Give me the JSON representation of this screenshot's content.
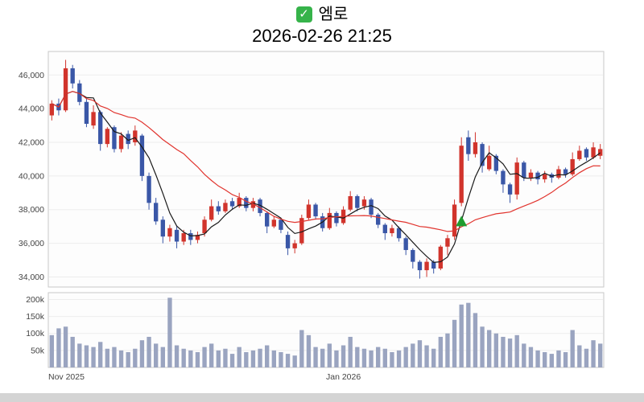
{
  "header": {
    "check_icon": "✓",
    "title": "엠로",
    "datetime": "2026-02-26 21:25"
  },
  "colors": {
    "up": "#d1342c",
    "down": "#3a57a7",
    "volume": "#9aa4c0",
    "panel_bg": "#fdfdfd",
    "panel_border": "#c8c8c8",
    "grid": "#ededed",
    "marker": "#1f9d2f",
    "check_bg": "#36b34a"
  },
  "chart_data": {
    "type": "candlestick",
    "title": "엠로",
    "datetime": "2026-02-26 21:25",
    "price_axis": {
      "min": 33400,
      "max": 47400,
      "ticks": [
        46000,
        44000,
        42000,
        40000,
        38000,
        36000,
        34000
      ]
    },
    "volume_axis": {
      "max": 220,
      "unit": "k",
      "ticks": [
        {
          "value": 200,
          "label": "200k"
        },
        {
          "value": 150,
          "label": "150k"
        },
        {
          "value": 100,
          "label": "100k"
        },
        {
          "value": 50,
          "label": "50k"
        }
      ]
    },
    "x_labels": [
      {
        "index": 0,
        "label": "Nov 2025"
      },
      {
        "index": 40,
        "label": "Jan 2026"
      }
    ],
    "overlays": [
      {
        "name": "ma-short-line",
        "period": 5,
        "color": "#1a1a1a"
      },
      {
        "name": "ma-long-line",
        "period": 20,
        "color": "#e1342e"
      }
    ],
    "marker": {
      "type": "up-triangle",
      "index": 59,
      "price": 37300
    },
    "candles_format": [
      "open",
      "high",
      "low",
      "close",
      "volume_k"
    ],
    "candles": [
      [
        43600,
        44500,
        43300,
        44300,
        95
      ],
      [
        44300,
        44600,
        43600,
        43900,
        115
      ],
      [
        43900,
        46900,
        43800,
        46400,
        120
      ],
      [
        46400,
        46600,
        45200,
        45500,
        90
      ],
      [
        45500,
        45700,
        44200,
        44400,
        70
      ],
      [
        44400,
        44600,
        42900,
        43100,
        65
      ],
      [
        43000,
        44200,
        42800,
        43800,
        60
      ],
      [
        43800,
        43900,
        41500,
        41900,
        75
      ],
      [
        41900,
        42900,
        41700,
        42800,
        55
      ],
      [
        42900,
        43000,
        41400,
        41600,
        60
      ],
      [
        41600,
        42600,
        41400,
        42400,
        50
      ],
      [
        42500,
        42700,
        41600,
        41900,
        45
      ],
      [
        42000,
        43000,
        41800,
        42700,
        55
      ],
      [
        42400,
        42500,
        39700,
        40000,
        80
      ],
      [
        40000,
        40200,
        38000,
        38400,
        90
      ],
      [
        38400,
        38700,
        37100,
        37300,
        70
      ],
      [
        37400,
        37600,
        36000,
        36400,
        60
      ],
      [
        36400,
        37100,
        36100,
        36900,
        205
      ],
      [
        36800,
        37000,
        35700,
        36100,
        65
      ],
      [
        36100,
        36800,
        35900,
        36600,
        55
      ],
      [
        36600,
        36800,
        35900,
        36200,
        50
      ],
      [
        36200,
        36700,
        36000,
        36500,
        45
      ],
      [
        36600,
        37600,
        36400,
        37400,
        60
      ],
      [
        37400,
        38600,
        37300,
        38200,
        70
      ],
      [
        38200,
        38500,
        37700,
        37900,
        50
      ],
      [
        37900,
        38600,
        37800,
        38400,
        55
      ],
      [
        38500,
        38700,
        38000,
        38200,
        40
      ],
      [
        38200,
        39000,
        38100,
        38700,
        60
      ],
      [
        38700,
        38800,
        37900,
        38100,
        45
      ],
      [
        38100,
        38700,
        37900,
        38500,
        50
      ],
      [
        38600,
        38700,
        37600,
        37800,
        55
      ],
      [
        37800,
        37900,
        36600,
        37000,
        65
      ],
      [
        37000,
        37600,
        36900,
        37400,
        50
      ],
      [
        37400,
        37500,
        36600,
        36800,
        45
      ],
      [
        36500,
        36700,
        35300,
        35700,
        40
      ],
      [
        35700,
        36200,
        35400,
        36000,
        35
      ],
      [
        36000,
        37700,
        35900,
        37500,
        110
      ],
      [
        37500,
        38600,
        37400,
        38300,
        95
      ],
      [
        38300,
        38400,
        37400,
        37600,
        60
      ],
      [
        37600,
        37800,
        36700,
        36900,
        55
      ],
      [
        36900,
        38100,
        36800,
        37800,
        70
      ],
      [
        37800,
        37900,
        37000,
        37200,
        50
      ],
      [
        37200,
        38200,
        37100,
        38000,
        65
      ],
      [
        38000,
        39100,
        37900,
        38800,
        90
      ],
      [
        38800,
        38900,
        37900,
        38100,
        60
      ],
      [
        38200,
        38800,
        38000,
        38600,
        55
      ],
      [
        38600,
        38700,
        37500,
        37700,
        50
      ],
      [
        37700,
        37800,
        36900,
        37100,
        60
      ],
      [
        37100,
        37200,
        36200,
        36600,
        55
      ],
      [
        36600,
        37100,
        36400,
        36900,
        45
      ],
      [
        36900,
        37000,
        36100,
        36300,
        50
      ],
      [
        36300,
        36400,
        35300,
        35600,
        60
      ],
      [
        35600,
        35700,
        34500,
        34900,
        70
      ],
      [
        34900,
        35000,
        33900,
        34400,
        80
      ],
      [
        34400,
        35100,
        34000,
        34900,
        65
      ],
      [
        34900,
        35000,
        34200,
        34500,
        55
      ],
      [
        34500,
        35900,
        34400,
        35800,
        90
      ],
      [
        35800,
        36500,
        35300,
        36300,
        100
      ],
      [
        36400,
        38600,
        36200,
        38300,
        140
      ],
      [
        38400,
        42300,
        38200,
        41800,
        185
      ],
      [
        42300,
        42700,
        40900,
        41300,
        190
      ],
      [
        41300,
        42600,
        41100,
        42000,
        160
      ],
      [
        41900,
        42000,
        40200,
        40600,
        120
      ],
      [
        40400,
        41800,
        40300,
        41200,
        110
      ],
      [
        41200,
        41300,
        40100,
        40300,
        100
      ],
      [
        40300,
        40400,
        39000,
        39500,
        90
      ],
      [
        39500,
        39600,
        38400,
        38900,
        85
      ],
      [
        38900,
        41100,
        38600,
        40800,
        95
      ],
      [
        40800,
        40900,
        39700,
        39900,
        70
      ],
      [
        39900,
        40400,
        39700,
        40200,
        60
      ],
      [
        40200,
        40300,
        39500,
        39800,
        50
      ],
      [
        39800,
        40300,
        39600,
        40100,
        45
      ],
      [
        40100,
        40200,
        39600,
        39900,
        40
      ],
      [
        39900,
        40600,
        39800,
        40400,
        50
      ],
      [
        40400,
        40500,
        39900,
        40100,
        45
      ],
      [
        40100,
        41400,
        40000,
        41000,
        110
      ],
      [
        41000,
        41800,
        40900,
        41500,
        65
      ],
      [
        41600,
        41700,
        40900,
        41100,
        55
      ],
      [
        41100,
        42000,
        41000,
        41700,
        80
      ],
      [
        41200,
        41900,
        41000,
        41600,
        70
      ]
    ]
  }
}
